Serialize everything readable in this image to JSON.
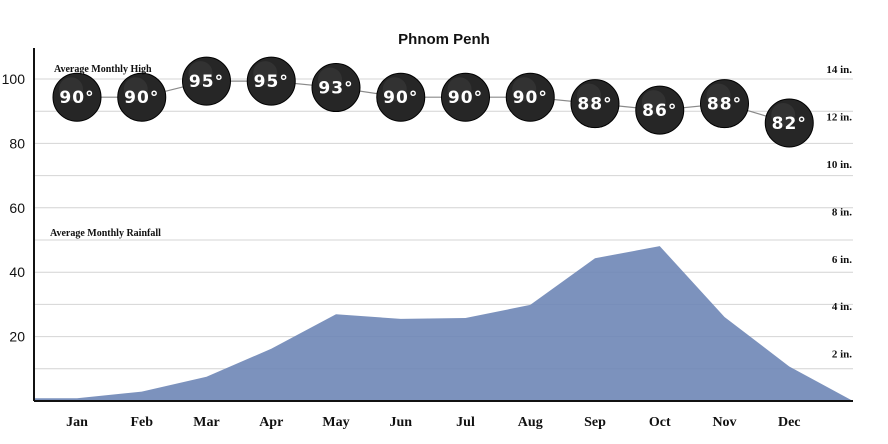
{
  "chart_data": {
    "type": "area",
    "title": "Phnom Penh",
    "categories": [
      "Jan",
      "Feb",
      "Mar",
      "Apr",
      "May",
      "Jun",
      "Jul",
      "Aug",
      "Sep",
      "Oct",
      "Nov",
      "Dec"
    ],
    "series": [
      {
        "name": "Average Monthly High",
        "kind": "line",
        "values": [
          90,
          90,
          95,
          95,
          93,
          90,
          90,
          90,
          88,
          86,
          88,
          82
        ],
        "labels": [
          "90°",
          "90°",
          "95°",
          "95°",
          "93°",
          "90°",
          "90°",
          "90°",
          "88°",
          "86°",
          "88°",
          "82°"
        ],
        "color": "#2a2a2a"
      },
      {
        "name": "Average Monthly Rainfall",
        "kind": "area",
        "values": [
          0.3,
          1.0,
          2.6,
          5.6,
          9.3,
          8.8,
          8.9,
          10.3,
          15.3,
          16.6,
          9.0,
          3.7
        ],
        "color": "#6e86b6"
      }
    ],
    "left_axis": {
      "ylim": [
        0,
        105
      ],
      "ticks": [
        20,
        40,
        60,
        80,
        100
      ]
    },
    "right_axis": {
      "ylim": [
        0,
        35.4
      ],
      "ticks": [
        2,
        4,
        6,
        8,
        10,
        12,
        14
      ],
      "tick_labels": [
        "2 in.",
        "4 in.",
        "6 in.",
        "8 in.",
        "10 in.",
        "12 in.",
        "14 in."
      ]
    },
    "rain_scale": "right-axis ticks labeled for in., rainfall plotted in cm",
    "grid": true,
    "gridlines": [
      10,
      20,
      30,
      40,
      50,
      60,
      70,
      80,
      90,
      100
    ]
  }
}
